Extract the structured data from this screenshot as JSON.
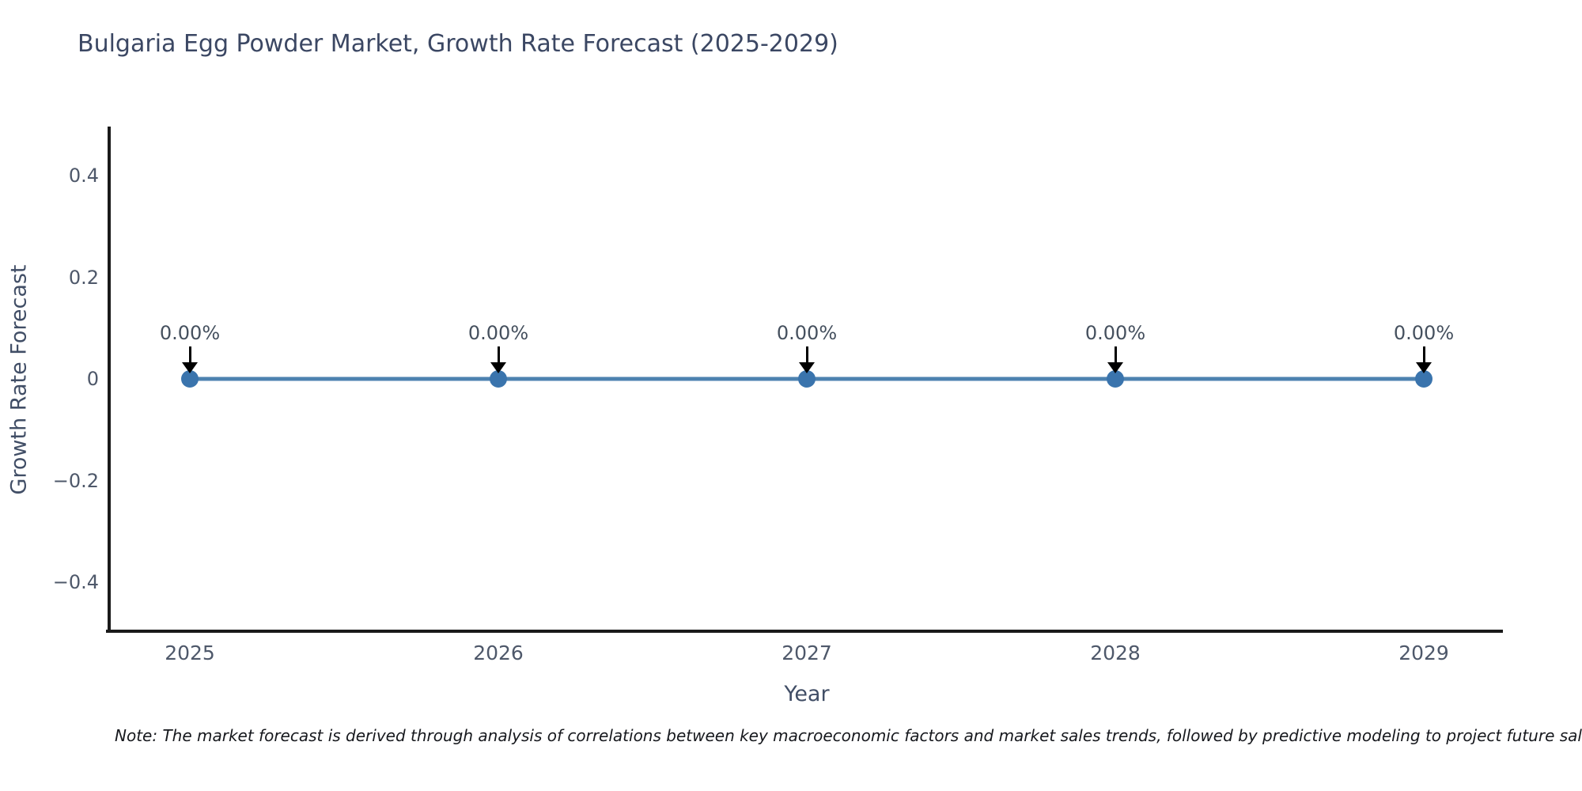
{
  "chart_data": {
    "type": "line",
    "title": "Bulgaria Egg Powder Market, Growth Rate Forecast (2025-2029)",
    "xlabel": "Year",
    "ylabel": "Growth Rate Forecast",
    "x": [
      "2025",
      "2026",
      "2027",
      "2028",
      "2029"
    ],
    "values": [
      0,
      0,
      0,
      0,
      0
    ],
    "point_labels": [
      "0.00%",
      "0.00%",
      "0.00%",
      "0.00%",
      "0.00%"
    ],
    "yticks": {
      "labels": [
        "0.4",
        "0.2",
        "0",
        "−0.2",
        "−0.4"
      ],
      "values": [
        0.4,
        0.2,
        0,
        -0.2,
        -0.4
      ]
    },
    "ylim": [
      -0.5,
      0.5
    ],
    "grid": false,
    "legend": "none",
    "marker": "circle",
    "annotation_arrows": true,
    "note": "Note: The market forecast is derived through analysis of correlations between key macroeconomic factors and market sales trends, followed by predictive modeling to project future sales.",
    "colors": {
      "background": "#ffffff",
      "line": "#4d82b0",
      "marker": "#3a74ad",
      "axis": "#1a1a1a",
      "title_text": "#3b4763",
      "tick_text": "#4e586a",
      "axis_label_text": "#414e66",
      "annotation_text": "#45505e",
      "arrow": "#000000",
      "note_text": "#16181d"
    }
  }
}
